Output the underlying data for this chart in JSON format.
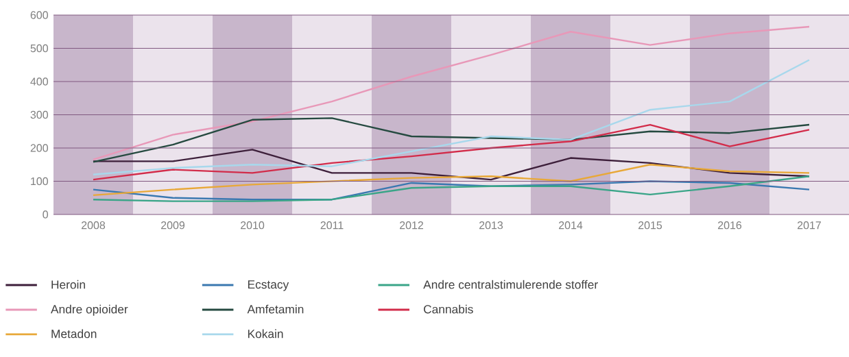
{
  "chart_data": {
    "type": "line",
    "x": [
      2008,
      2009,
      2010,
      2011,
      2012,
      2013,
      2014,
      2015,
      2016,
      2017
    ],
    "xlim": [
      2007.5,
      2017.5
    ],
    "xticks": [
      2008,
      2009,
      2010,
      2011,
      2012,
      2013,
      2014,
      2015,
      2016,
      2017
    ],
    "ylim": [
      0,
      600
    ],
    "yticks": [
      0,
      100,
      200,
      300,
      400,
      500,
      600
    ],
    "grid": "y",
    "legend": "bottom",
    "bands": [
      {
        "axis": "x",
        "from": 2007.5,
        "to": 2008.5,
        "color": "#c8b6cb"
      },
      {
        "axis": "x",
        "from": 2008.5,
        "to": 2009.5,
        "color": "#ebe3ec"
      },
      {
        "axis": "x",
        "from": 2009.5,
        "to": 2010.5,
        "color": "#c8b6cb"
      },
      {
        "axis": "x",
        "from": 2010.5,
        "to": 2011.5,
        "color": "#ebe3ec"
      },
      {
        "axis": "x",
        "from": 2011.5,
        "to": 2012.5,
        "color": "#c8b6cb"
      },
      {
        "axis": "x",
        "from": 2012.5,
        "to": 2013.5,
        "color": "#ebe3ec"
      },
      {
        "axis": "x",
        "from": 2013.5,
        "to": 2014.5,
        "color": "#c8b6cb"
      },
      {
        "axis": "x",
        "from": 2014.5,
        "to": 2015.5,
        "color": "#ebe3ec"
      },
      {
        "axis": "x",
        "from": 2015.5,
        "to": 2016.5,
        "color": "#c8b6cb"
      },
      {
        "axis": "x",
        "from": 2016.5,
        "to": 2017.5,
        "color": "#ebe3ec"
      }
    ],
    "series": [
      {
        "name": "Heroin",
        "color": "#3d1f3a",
        "values": [
          160,
          160,
          195,
          125,
          125,
          105,
          170,
          155,
          125,
          115
        ]
      },
      {
        "name": "Ecstacy",
        "color": "#3a78b0",
        "values": [
          75,
          50,
          45,
          45,
          95,
          85,
          90,
          100,
          95,
          75
        ]
      },
      {
        "name": "Andre centralstimulerende stoffer",
        "color": "#3aa588",
        "values": [
          45,
          40,
          40,
          45,
          80,
          85,
          85,
          60,
          85,
          115
        ]
      },
      {
        "name": "Andre opioider",
        "color": "#e898b8",
        "values": [
          165,
          240,
          280,
          340,
          415,
          480,
          550,
          510,
          545,
          565
        ]
      },
      {
        "name": "Amfetamin",
        "color": "#254a40",
        "values": [
          158,
          210,
          285,
          290,
          235,
          230,
          225,
          250,
          245,
          270
        ]
      },
      {
        "name": "Cannabis",
        "color": "#d22c4a",
        "values": [
          105,
          135,
          125,
          155,
          175,
          200,
          220,
          270,
          205,
          255
        ]
      },
      {
        "name": "Metadon",
        "color": "#e8a838",
        "values": [
          58,
          75,
          90,
          100,
          110,
          115,
          100,
          150,
          130,
          125
        ]
      },
      {
        "name": "Kokain",
        "color": "#a8d8ec",
        "values": [
          120,
          140,
          150,
          145,
          190,
          235,
          225,
          315,
          340,
          465
        ]
      }
    ]
  }
}
